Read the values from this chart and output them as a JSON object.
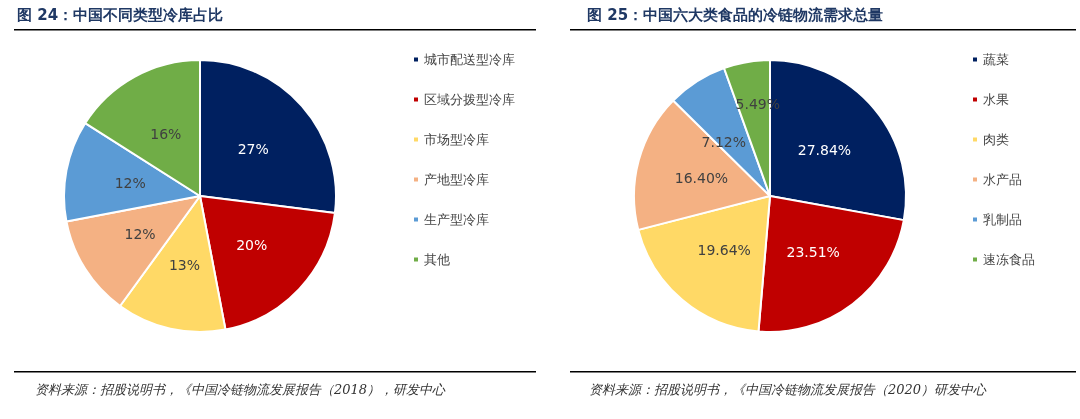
{
  "chart_data": [
    {
      "type": "pie",
      "title": "图 24：中国不同类型冷库占比",
      "categories": [
        "城市配送型冷库",
        "区域分拨型冷库",
        "市场型冷库",
        "产地型冷库",
        "生产型冷库",
        "其他"
      ],
      "values": [
        27,
        20,
        13,
        12,
        12,
        16
      ],
      "value_labels": [
        "27%",
        "20%",
        "13%",
        "12%",
        "12%",
        "16%"
      ],
      "colors": [
        "#002060",
        "#c00000",
        "#ffd966",
        "#f4b183",
        "#5b9bd5",
        "#70ad47"
      ],
      "legend": "right",
      "annotations": [
        "资料来源：招股说明书，《中国冷链物流发展报告（2018），研发中心"
      ]
    },
    {
      "type": "pie",
      "title": "图 25：中国六大类食品的冷链物流需求总量",
      "categories": [
        "蔬菜",
        "水果",
        "肉类",
        "水产品",
        "乳制品",
        "速冻食品"
      ],
      "values": [
        27.84,
        23.51,
        19.64,
        16.4,
        7.12,
        5.49
      ],
      "value_labels": [
        "27.84%",
        "23.51%",
        "19.64%",
        "16.40%",
        "7.12%",
        "5.49%"
      ],
      "colors": [
        "#002060",
        "#c00000",
        "#ffd966",
        "#f4b183",
        "#5b9bd5",
        "#70ad47"
      ],
      "legend": "right",
      "annotations": [
        "资料来源：招股说明书，《中国冷链物流发展报告（2020）研发中心"
      ]
    }
  ]
}
